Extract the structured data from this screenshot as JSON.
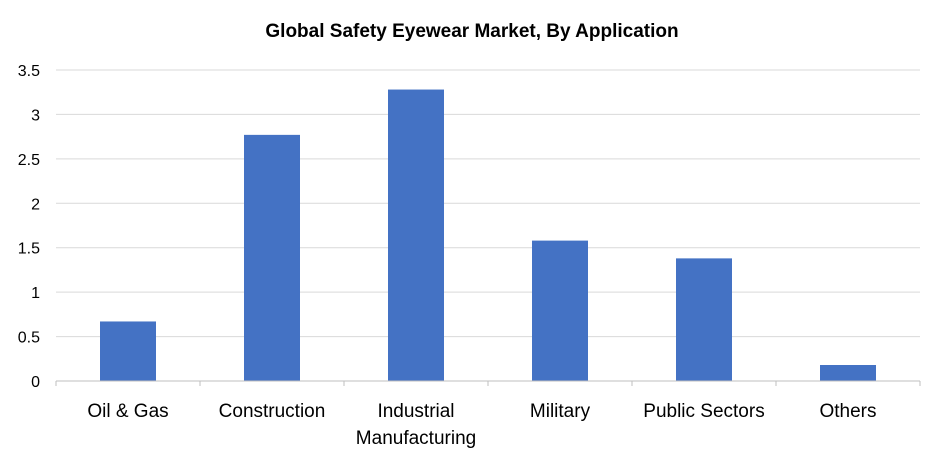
{
  "chart_data": {
    "type": "bar",
    "title": "Global Safety Eyewear Market, By Application",
    "categories": [
      "Oil & Gas",
      "Construction",
      "Industrial Manufacturing",
      "Military",
      "Public Sectors",
      "Others"
    ],
    "category_lines": [
      [
        "Oil & Gas"
      ],
      [
        "Construction"
      ],
      [
        "Industrial",
        "Manufacturing"
      ],
      [
        "Military"
      ],
      [
        "Public Sectors"
      ],
      [
        "Others"
      ]
    ],
    "values": [
      0.67,
      2.77,
      3.28,
      1.58,
      1.38,
      0.18
    ],
    "xlabel": "",
    "ylabel": "",
    "ylim": [
      0,
      3.5
    ],
    "yticks": [
      "0",
      "0.5",
      "1",
      "1.5",
      "2",
      "2.5",
      "3",
      "3.5"
    ],
    "grid": true,
    "legend": "none",
    "bar_color": "#4472C4",
    "grid_color": "#D9D9D9",
    "axis_color": "#BFBFBF",
    "text_color": "#000000"
  }
}
